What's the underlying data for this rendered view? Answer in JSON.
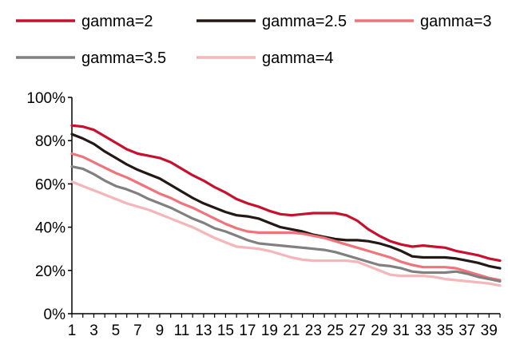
{
  "chart_data": {
    "type": "line",
    "title": "",
    "xlabel": "",
    "ylabel": "",
    "x": [
      1,
      2,
      3,
      4,
      5,
      6,
      7,
      8,
      9,
      10,
      11,
      12,
      13,
      14,
      15,
      16,
      17,
      18,
      19,
      20,
      21,
      22,
      23,
      24,
      25,
      26,
      27,
      28,
      29,
      30,
      31,
      32,
      33,
      34,
      35,
      36,
      37,
      38,
      39,
      40
    ],
    "x_tick_labels": [
      "1",
      "3",
      "5",
      "7",
      "9",
      "11",
      "13",
      "15",
      "17",
      "19",
      "21",
      "23",
      "25",
      "27",
      "29",
      "31",
      "33",
      "35",
      "37",
      "39"
    ],
    "ylim": [
      0,
      1
    ],
    "y_ticks": [
      0,
      0.2,
      0.4,
      0.6,
      0.8,
      1.0
    ],
    "y_tick_labels": [
      "0%",
      "20%",
      "40%",
      "60%",
      "80%",
      "100%"
    ],
    "grid": false,
    "legend_position": "top",
    "series": [
      {
        "name": "gamma=2",
        "color": "#c8102e",
        "values": [
          0.87,
          0.865,
          0.85,
          0.82,
          0.79,
          0.76,
          0.74,
          0.73,
          0.72,
          0.7,
          0.67,
          0.64,
          0.615,
          0.585,
          0.56,
          0.53,
          0.51,
          0.495,
          0.475,
          0.46,
          0.455,
          0.46,
          0.465,
          0.465,
          0.465,
          0.455,
          0.43,
          0.39,
          0.36,
          0.335,
          0.32,
          0.31,
          0.315,
          0.31,
          0.305,
          0.29,
          0.28,
          0.27,
          0.255,
          0.245
        ]
      },
      {
        "name": "gamma=2.5",
        "color": "#231815",
        "values": [
          0.83,
          0.81,
          0.785,
          0.75,
          0.72,
          0.69,
          0.665,
          0.645,
          0.625,
          0.595,
          0.565,
          0.535,
          0.51,
          0.49,
          0.47,
          0.455,
          0.45,
          0.44,
          0.42,
          0.4,
          0.39,
          0.38,
          0.365,
          0.355,
          0.345,
          0.34,
          0.34,
          0.335,
          0.325,
          0.31,
          0.29,
          0.265,
          0.26,
          0.26,
          0.26,
          0.255,
          0.245,
          0.235,
          0.22,
          0.21
        ]
      },
      {
        "name": "gamma=3",
        "color": "#f0737a",
        "values": [
          0.74,
          0.725,
          0.7,
          0.675,
          0.65,
          0.63,
          0.605,
          0.58,
          0.555,
          0.535,
          0.51,
          0.49,
          0.465,
          0.44,
          0.415,
          0.395,
          0.38,
          0.375,
          0.375,
          0.375,
          0.375,
          0.37,
          0.36,
          0.35,
          0.335,
          0.32,
          0.305,
          0.29,
          0.275,
          0.26,
          0.24,
          0.225,
          0.215,
          0.215,
          0.215,
          0.21,
          0.195,
          0.18,
          0.165,
          0.155
        ]
      },
      {
        "name": "gamma=3.5",
        "color": "#808080",
        "values": [
          0.68,
          0.67,
          0.645,
          0.615,
          0.59,
          0.575,
          0.555,
          0.53,
          0.51,
          0.49,
          0.465,
          0.44,
          0.42,
          0.395,
          0.38,
          0.36,
          0.34,
          0.325,
          0.32,
          0.315,
          0.31,
          0.305,
          0.3,
          0.295,
          0.285,
          0.27,
          0.255,
          0.24,
          0.225,
          0.22,
          0.21,
          0.195,
          0.19,
          0.19,
          0.19,
          0.195,
          0.185,
          0.17,
          0.16,
          0.15
        ]
      },
      {
        "name": "gamma=4",
        "color": "#f4b6b8",
        "values": [
          0.61,
          0.59,
          0.57,
          0.55,
          0.53,
          0.51,
          0.495,
          0.48,
          0.46,
          0.44,
          0.42,
          0.4,
          0.375,
          0.35,
          0.33,
          0.31,
          0.305,
          0.3,
          0.29,
          0.275,
          0.26,
          0.25,
          0.245,
          0.245,
          0.245,
          0.245,
          0.24,
          0.22,
          0.2,
          0.18,
          0.175,
          0.175,
          0.175,
          0.17,
          0.16,
          0.155,
          0.15,
          0.145,
          0.14,
          0.13
        ]
      }
    ]
  }
}
